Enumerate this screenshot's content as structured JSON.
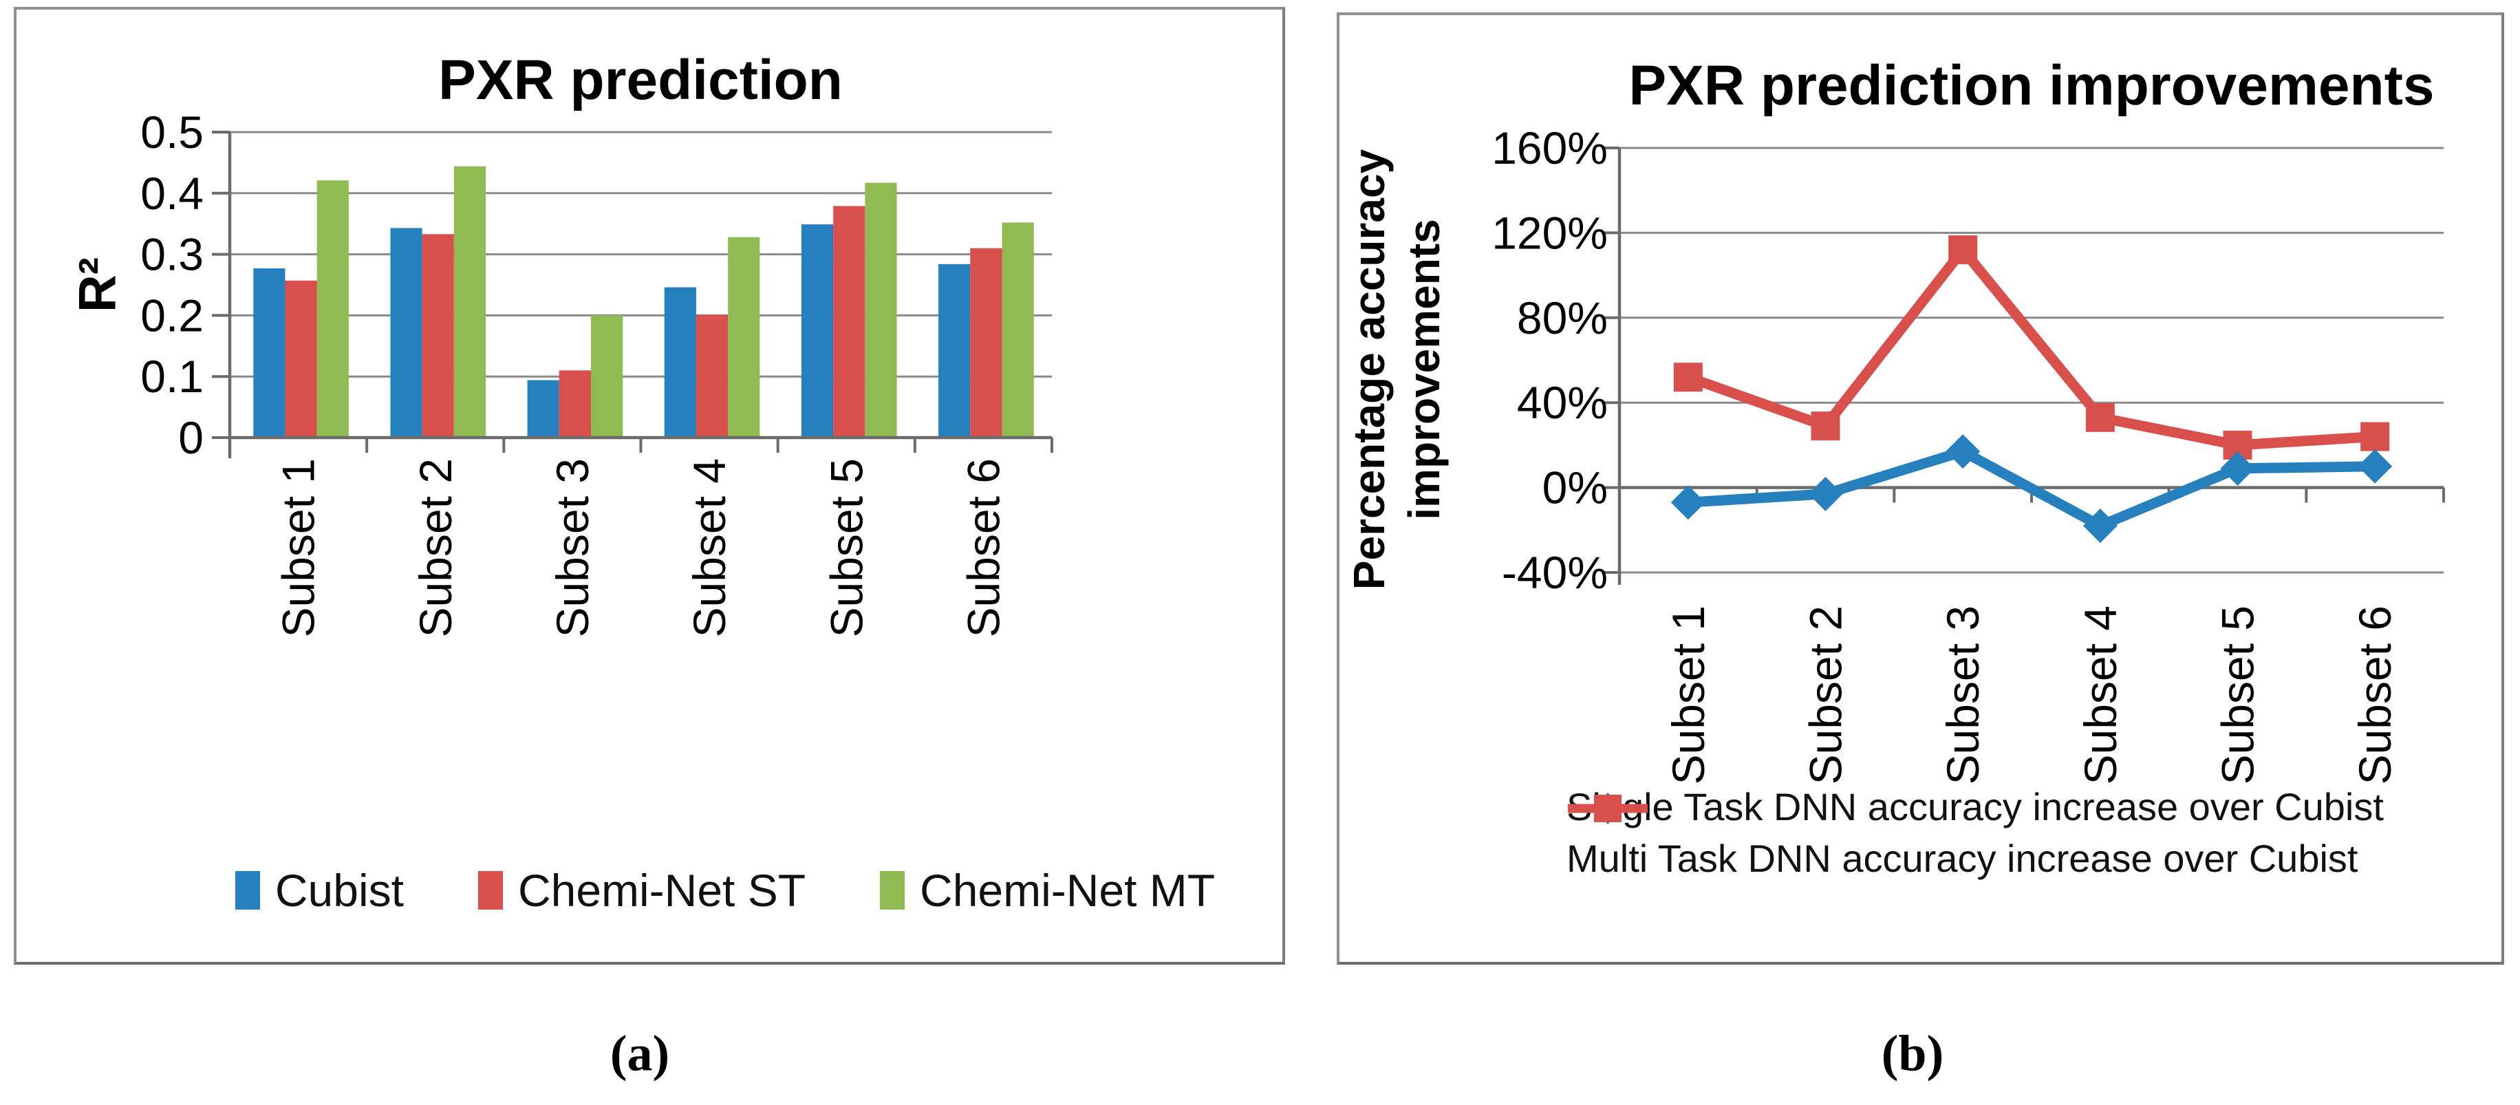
{
  "figure": {
    "captions": {
      "a": "(a)",
      "b": "(b)"
    }
  },
  "colors": {
    "blue": "#2780BE",
    "red": "#D94F4C",
    "green": "#8FBB52",
    "grid": "#8a8a8a",
    "axis": "#6b6b6b",
    "text": "#000000",
    "panel_border": "#8f8f8f"
  },
  "chart_data": [
    {
      "id": "pxr-prediction",
      "type": "bar",
      "title": "PXR prediction",
      "ylabel": "R²",
      "categories": [
        "Subset 1",
        "Subset 2",
        "Subset 3",
        "Subset 4",
        "Subset 5",
        "Subset 6"
      ],
      "series": [
        {
          "name": "Cubist",
          "color_key": "blue",
          "values": [
            0.277,
            0.343,
            0.094,
            0.246,
            0.349,
            0.284
          ]
        },
        {
          "name": "Chemi-Net ST",
          "color_key": "red",
          "values": [
            0.257,
            0.333,
            0.11,
            0.201,
            0.379,
            0.31
          ]
        },
        {
          "name": "Chemi-Net MT",
          "color_key": "green",
          "values": [
            0.421,
            0.444,
            0.2,
            0.328,
            0.417,
            0.352
          ]
        }
      ],
      "ylim": [
        0,
        0.5
      ],
      "yticks": [
        {
          "v": 0.5,
          "label": "0.5"
        },
        {
          "v": 0.4,
          "label": "0.4"
        },
        {
          "v": 0.3,
          "label": "0.3"
        },
        {
          "v": 0.2,
          "label": "0.2"
        },
        {
          "v": 0.1,
          "label": "0.1"
        },
        {
          "v": 0,
          "label": "0"
        }
      ],
      "grid": true,
      "legend_position": "bottom-center"
    },
    {
      "id": "pxr-prediction-improvements",
      "type": "line",
      "title": "PXR prediction improvements",
      "ylabel_lines": [
        "Percentage accuracy",
        "improvements"
      ],
      "categories": [
        "Subset 1",
        "Subset 2",
        "Subset 3",
        "Subset 4",
        "Subset 5",
        "Subset 6"
      ],
      "series": [
        {
          "name": "Single Task DNN accuracy increase over Cubist",
          "color_key": "blue",
          "marker": "diamond",
          "values_pct": [
            -7,
            -3,
            17,
            -18,
            9,
            10
          ]
        },
        {
          "name": "Multi Task DNN accuracy increase over Cubist",
          "color_key": "red",
          "marker": "square",
          "values_pct": [
            52,
            29,
            112,
            33,
            20,
            24
          ]
        }
      ],
      "ylim_pct": [
        -40,
        160
      ],
      "yticks_pct": [
        {
          "v": 160,
          "label": "160%"
        },
        {
          "v": 120,
          "label": "120%"
        },
        {
          "v": 80,
          "label": "80%"
        },
        {
          "v": 40,
          "label": "40%"
        },
        {
          "v": 0,
          "label": "0%"
        },
        {
          "v": -40,
          "label": "-40%"
        }
      ],
      "grid": true,
      "legend_position": "bottom-left"
    }
  ]
}
